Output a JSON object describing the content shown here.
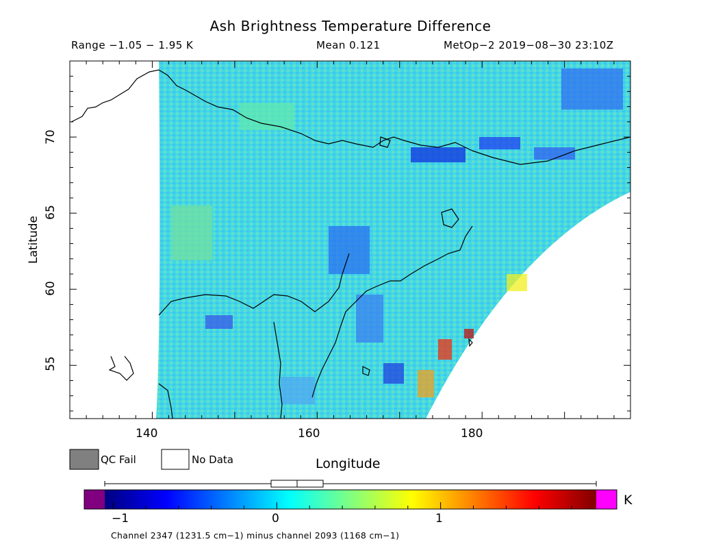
{
  "title": "Ash Brightness Temperature Difference",
  "subtitle": {
    "range": "Range −1.05 − 1.95 K",
    "mean": "Mean 0.121",
    "satellite": "MetOp−2 2019−08−30 23:10Z"
  },
  "axes": {
    "xlabel": "Longitude",
    "ylabel": "Latitude",
    "x_ticks": [
      "140",
      "160",
      "180"
    ],
    "y_ticks": [
      "55",
      "60",
      "65",
      "70"
    ],
    "xlim": [
      130,
      198
    ],
    "ylim": [
      51.5,
      75
    ]
  },
  "legend": {
    "qc_fail": "QC Fail",
    "no_data": "No Data",
    "qc_fail_color": "#808080",
    "no_data_color": "#ffffff"
  },
  "colorbar": {
    "unit": "K",
    "ticks": [
      "−1",
      "0",
      "1"
    ],
    "range": [
      -1.05,
      1.95
    ],
    "stats_box": {
      "min": -1.05,
      "q1": -0.05,
      "median": 0.12,
      "q3": 0.29,
      "max": 1.95
    },
    "colors": [
      "#000080",
      "#0000ff",
      "#0080ff",
      "#00ffff",
      "#80ff80",
      "#ffff00",
      "#ff8000",
      "#ff0000",
      "#800000"
    ],
    "under_color": "#800080",
    "over_color": "#ff00ff"
  },
  "footer": "Channel 2347 (1231.5 cm−1) minus channel 2093 (1168 cm−1)"
}
